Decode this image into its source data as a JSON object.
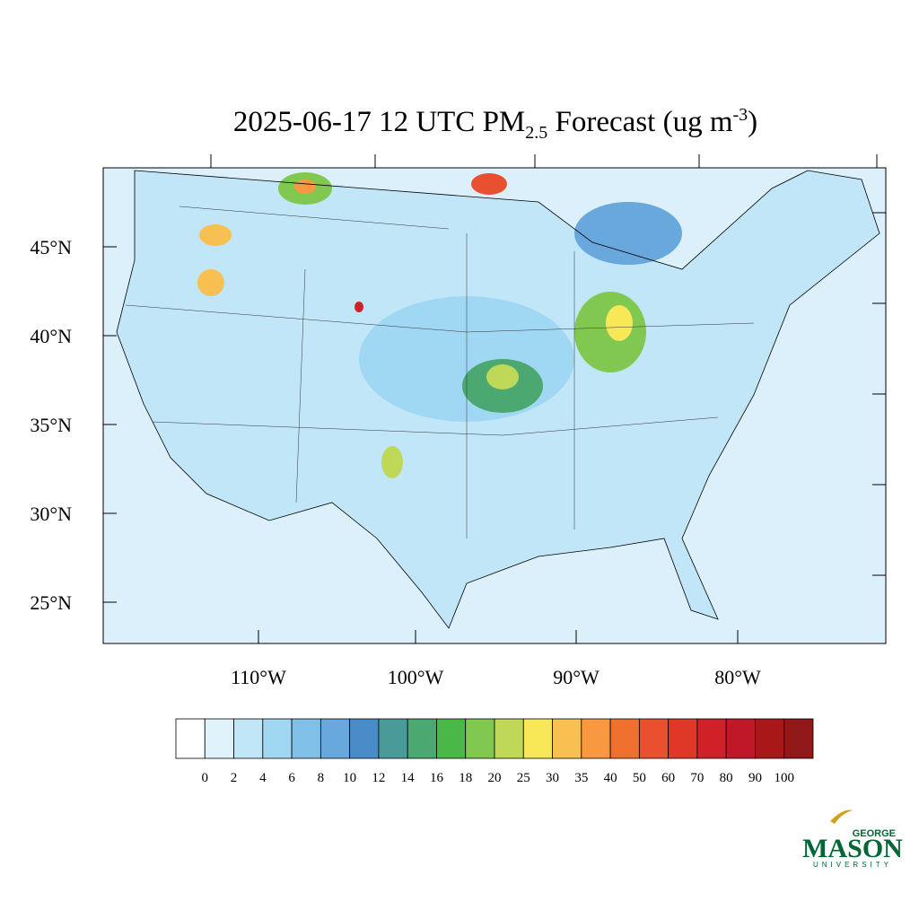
{
  "title": {
    "prefix": "2025-06-17 12 UTC PM",
    "subscript": "2.5",
    "middle": " Forecast (ug m",
    "superscript": "-3",
    "suffix": ")"
  },
  "lat_labels": [
    "45°N",
    "40°N",
    "35°N",
    "30°N",
    "25°N"
  ],
  "lon_labels": [
    "110°W",
    "100°W",
    "90°W",
    "80°W"
  ],
  "colorbar": {
    "levels": [
      0,
      2,
      4,
      6,
      8,
      10,
      12,
      14,
      16,
      18,
      20,
      25,
      30,
      35,
      40,
      50,
      60,
      70,
      80,
      90,
      100
    ],
    "colors": [
      "#ffffff",
      "#e0f3fb",
      "#c0e6f8",
      "#a0d8f4",
      "#80c0e8",
      "#68a8dc",
      "#4a8cc8",
      "#4a9a9a",
      "#4aa870",
      "#4ab848",
      "#80c850",
      "#c0d858",
      "#f8e858",
      "#f8c050",
      "#f89840",
      "#f07030",
      "#e85030",
      "#e03828",
      "#d02028",
      "#c01828",
      "#a81818",
      "#901818"
    ]
  },
  "logo": {
    "top": "GEORGE",
    "name": "MASON",
    "bottom": "UNIVERSITY"
  }
}
